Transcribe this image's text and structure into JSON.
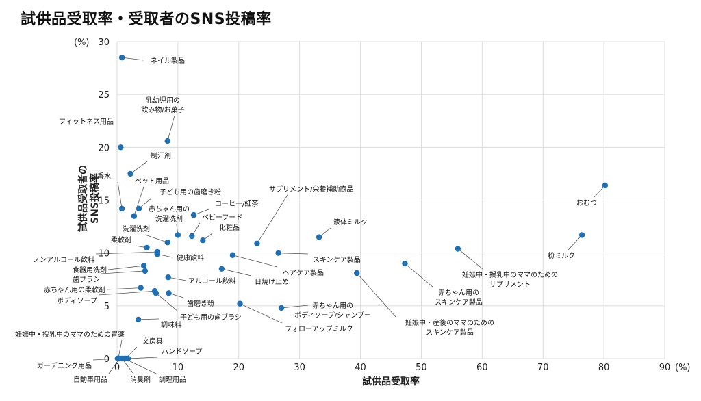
{
  "chart_data": {
    "type": "scatter",
    "title": "試供品受取率・受取者のSNS投稿率",
    "xlabel": "試供品受取率",
    "ylabel": "試供品受取者の SNS投稿率",
    "x_unit": "(%)",
    "y_unit": "(%)",
    "xlim": [
      0,
      90
    ],
    "ylim": [
      0,
      30
    ],
    "xticks": [
      0,
      10,
      20,
      30,
      40,
      50,
      60,
      70,
      80,
      90
    ],
    "yticks": [
      0,
      5,
      10,
      15,
      20,
      25,
      30
    ],
    "grid": true,
    "marker_color": "#1f6fb4",
    "points": [
      {
        "label": "ネイル製品",
        "x": 0.8,
        "y": 28.5
      },
      {
        "label": "乳幼児用の 飲み物/お菓子",
        "x": 8.3,
        "y": 20.6
      },
      {
        "label": "フィットネス用品",
        "x": 0.6,
        "y": 20.0
      },
      {
        "label": "制汗剤",
        "x": 2.2,
        "y": 17.5
      },
      {
        "label": "香水",
        "x": 0.8,
        "y": 14.2
      },
      {
        "label": "ペット用品",
        "x": 2.8,
        "y": 13.5
      },
      {
        "label": "子ども用の歯磨き粉",
        "x": 3.6,
        "y": 14.2
      },
      {
        "label": "コーヒー/紅茶",
        "x": 12.6,
        "y": 13.6
      },
      {
        "label": "赤ちゃん用の 洗濯洗剤",
        "x": 10.0,
        "y": 11.7
      },
      {
        "label": "ベビーフード",
        "x": 12.3,
        "y": 11.6
      },
      {
        "label": "洗濯洗剤",
        "x": 8.3,
        "y": 11.0
      },
      {
        "label": "化粧品",
        "x": 14.1,
        "y": 11.2
      },
      {
        "label": "サプリメント/栄養補助商品",
        "x": 23.0,
        "y": 10.9
      },
      {
        "label": "液体ミルク",
        "x": 33.2,
        "y": 11.5
      },
      {
        "label": "柔軟剤",
        "x": 4.9,
        "y": 10.5
      },
      {
        "label": "健康飲料",
        "x": 6.6,
        "y": 9.9
      },
      {
        "label": "ノンアルコール飲料",
        "x": 6.6,
        "y": 10.1
      },
      {
        "label": "スキンケア製品",
        "x": 26.5,
        "y": 10.0
      },
      {
        "label": "ヘアケア製品",
        "x": 19.0,
        "y": 9.8
      },
      {
        "label": "食器用洗剤",
        "x": 4.4,
        "y": 8.8
      },
      {
        "label": "歯ブラシ",
        "x": 4.6,
        "y": 8.3
      },
      {
        "label": "アルコール飲料",
        "x": 8.4,
        "y": 7.7
      },
      {
        "label": "日焼け止め",
        "x": 17.2,
        "y": 8.5
      },
      {
        "label": "赤ちゃん用の柔軟剤",
        "x": 3.9,
        "y": 6.7
      },
      {
        "label": "ボディソープ",
        "x": 6.2,
        "y": 6.4
      },
      {
        "label": "子ども用の歯ブラシ",
        "x": 6.4,
        "y": 6.2
      },
      {
        "label": "歯磨き粉",
        "x": 8.5,
        "y": 6.2
      },
      {
        "label": "赤ちゃん用の ボディソープ/シャンプー",
        "x": 27.0,
        "y": 4.8
      },
      {
        "label": "フォローアップミルク",
        "x": 20.2,
        "y": 5.2
      },
      {
        "label": "調味料",
        "x": 3.5,
        "y": 3.7
      },
      {
        "label": "おむつ",
        "x": 80.2,
        "y": 16.4
      },
      {
        "label": "粉ミルク",
        "x": 76.4,
        "y": 11.7
      },
      {
        "label": "妊娠中・授乳中のママのための サプリメント",
        "x": 56.0,
        "y": 10.4
      },
      {
        "label": "赤ちゃん用の スキンケア製品",
        "x": 47.3,
        "y": 9.0
      },
      {
        "label": "妊娠中・産後のママのための スキンケア製品",
        "x": 39.4,
        "y": 8.1
      },
      {
        "label": "妊娠中・授乳中のママのための胃薬",
        "x": 0.2,
        "y": 0.0
      },
      {
        "label": "文房具",
        "x": 1.4,
        "y": 0.0
      },
      {
        "label": "ハンドソープ",
        "x": 1.8,
        "y": 0.0
      },
      {
        "label": "ガーデニング用品",
        "x": 0.1,
        "y": 0.0
      },
      {
        "label": "自動車用品",
        "x": 0.4,
        "y": 0.0
      },
      {
        "label": "消臭剤",
        "x": 0.8,
        "y": 0.0
      },
      {
        "label": "調理用品",
        "x": 1.2,
        "y": 0.0
      }
    ]
  }
}
